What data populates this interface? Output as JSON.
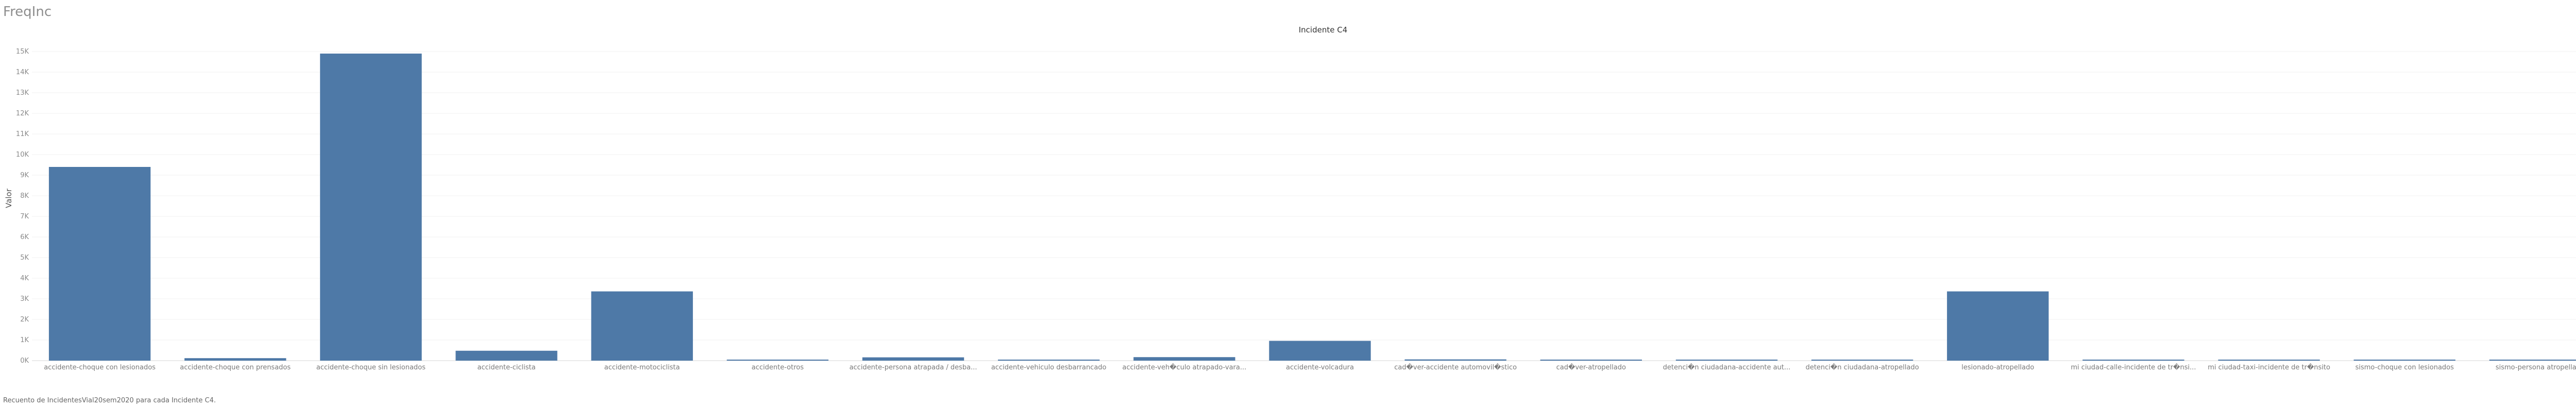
{
  "sheet": {
    "title": "FreqInc",
    "caption": "Recuento de IncidentesVial20sem2020 para cada Incidente C4."
  },
  "chart_data": {
    "type": "bar",
    "title": "Incidente C4",
    "ylabel": "Valor",
    "xlabel": "",
    "ylim": [
      0,
      15000
    ],
    "yticks": [
      {
        "v": 0,
        "label": "0K"
      },
      {
        "v": 1000,
        "label": "1K"
      },
      {
        "v": 2000,
        "label": "2K"
      },
      {
        "v": 3000,
        "label": "3K"
      },
      {
        "v": 4000,
        "label": "4K"
      },
      {
        "v": 5000,
        "label": "5K"
      },
      {
        "v": 6000,
        "label": "6K"
      },
      {
        "v": 7000,
        "label": "7K"
      },
      {
        "v": 8000,
        "label": "8K"
      },
      {
        "v": 9000,
        "label": "9K"
      },
      {
        "v": 10000,
        "label": "10K"
      },
      {
        "v": 11000,
        "label": "11K"
      },
      {
        "v": 12000,
        "label": "12K"
      },
      {
        "v": 13000,
        "label": "13K"
      },
      {
        "v": 14000,
        "label": "14K"
      },
      {
        "v": 15000,
        "label": "15K"
      }
    ],
    "grid": true,
    "bar_color": "#4e79a7",
    "categories": [
      "accidente-choque con lesionados",
      "accidente-choque con prensados",
      "accidente-choque sin lesionados",
      "accidente-ciclista",
      "accidente-motociclista",
      "accidente-otros",
      "accidente-persona atrapada / desba...",
      "accidente-vehiculo desbarrancado",
      "accidente-veh�culo atrapado-vara...",
      "accidente-volcadura",
      "cad�ver-accidente automovil�stico",
      "cad�ver-atropellado",
      "detenci�n ciudadana-accidente aut...",
      "detenci�n ciudadana-atropellado",
      "lesionado-atropellado",
      "mi ciudad-calle-incidente de tr�nsi...",
      "mi ciudad-taxi-incidente de tr�nsito",
      "sismo-choque con lesionados",
      "sismo-persona atropellada"
    ],
    "values": [
      9400,
      120,
      14900,
      480,
      3360,
      40,
      160,
      20,
      170,
      960,
      60,
      30,
      5,
      10,
      3360,
      2,
      2,
      25,
      2
    ]
  }
}
